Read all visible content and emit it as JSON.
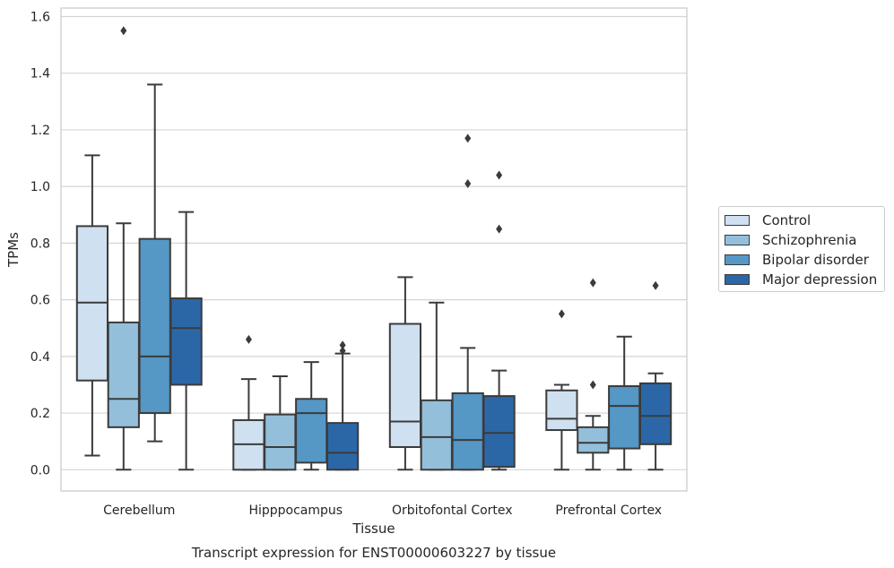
{
  "chart_data": {
    "type": "box",
    "title": "Transcript expression for ENST00000603227 by tissue",
    "xlabel": "Tissue",
    "ylabel": "TPMs",
    "ylim": [
      -0.075,
      1.63
    ],
    "yticks": [
      "0.0",
      "0.2",
      "0.4",
      "0.6",
      "0.8",
      "1.0",
      "1.2",
      "1.4",
      "1.6"
    ],
    "categories": [
      "Cerebellum",
      "Hipppocampus",
      "Orbitofontal Cortex",
      "Prefrontal Cortex"
    ],
    "grid": true,
    "legend_position": "right",
    "series": [
      {
        "name": "Control",
        "color": "#cfe0f0",
        "boxes": [
          {
            "min": 0.05,
            "q1": 0.315,
            "median": 0.59,
            "q3": 0.86,
            "max": 1.11,
            "outliers": []
          },
          {
            "min": 0.0,
            "q1": 0.0,
            "median": 0.09,
            "q3": 0.175,
            "max": 0.32,
            "outliers": [
              0.46
            ]
          },
          {
            "min": 0.0,
            "q1": 0.08,
            "median": 0.17,
            "q3": 0.515,
            "max": 0.68,
            "outliers": []
          },
          {
            "min": 0.0,
            "q1": 0.14,
            "median": 0.18,
            "q3": 0.28,
            "max": 0.3,
            "outliers": [
              0.55
            ]
          }
        ]
      },
      {
        "name": "Schizophrenia",
        "color": "#93bfdb",
        "boxes": [
          {
            "min": 0.0,
            "q1": 0.15,
            "median": 0.25,
            "q3": 0.52,
            "max": 0.87,
            "outliers": [
              1.55
            ]
          },
          {
            "min": 0.0,
            "q1": 0.0,
            "median": 0.08,
            "q3": 0.195,
            "max": 0.33,
            "outliers": []
          },
          {
            "min": 0.0,
            "q1": 0.0,
            "median": 0.115,
            "q3": 0.245,
            "max": 0.59,
            "outliers": []
          },
          {
            "min": 0.0,
            "q1": 0.06,
            "median": 0.095,
            "q3": 0.15,
            "max": 0.19,
            "outliers": [
              0.3,
              0.66
            ]
          }
        ]
      },
      {
        "name": "Bipolar disorder",
        "color": "#5597c5",
        "boxes": [
          {
            "min": 0.1,
            "q1": 0.2,
            "median": 0.4,
            "q3": 0.815,
            "max": 1.36,
            "outliers": []
          },
          {
            "min": 0.0,
            "q1": 0.025,
            "median": 0.2,
            "q3": 0.25,
            "max": 0.38,
            "outliers": []
          },
          {
            "min": 0.0,
            "q1": 0.0,
            "median": 0.105,
            "q3": 0.27,
            "max": 0.43,
            "outliers": [
              1.01,
              1.17
            ]
          },
          {
            "min": 0.0,
            "q1": 0.075,
            "median": 0.225,
            "q3": 0.295,
            "max": 0.47,
            "outliers": []
          }
        ]
      },
      {
        "name": "Major depression",
        "color": "#2b67a7",
        "boxes": [
          {
            "min": 0.0,
            "q1": 0.3,
            "median": 0.5,
            "q3": 0.605,
            "max": 0.91,
            "outliers": []
          },
          {
            "min": 0.0,
            "q1": 0.0,
            "median": 0.06,
            "q3": 0.165,
            "max": 0.41,
            "outliers": [
              0.42,
              0.44
            ]
          },
          {
            "min": 0.0,
            "q1": 0.01,
            "median": 0.13,
            "q3": 0.26,
            "max": 0.35,
            "outliers": [
              0.85,
              1.04
            ]
          },
          {
            "min": 0.0,
            "q1": 0.09,
            "median": 0.19,
            "q3": 0.305,
            "max": 0.34,
            "outliers": [
              0.65
            ]
          }
        ]
      }
    ]
  }
}
